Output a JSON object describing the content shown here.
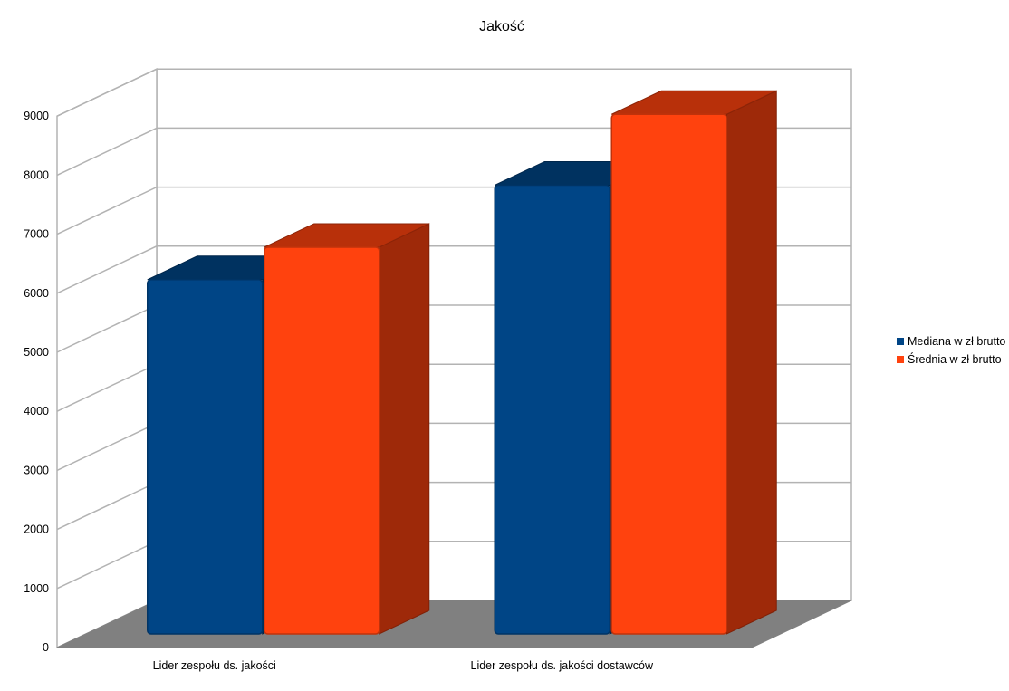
{
  "chart_data": {
    "type": "bar",
    "title": "Jakość",
    "categories": [
      "Lider zespołu ds. jakości",
      "Lider zespołu ds. jakości dostawców"
    ],
    "series": [
      {
        "name": "Mediana w zł brutto",
        "values": [
          6000,
          7600
        ],
        "color": "#004586"
      },
      {
        "name": "Średnia w zł brutto",
        "values": [
          6550,
          8800
        ],
        "color": "#ff420e"
      }
    ],
    "ylim": [
      0,
      9000
    ],
    "yticks": [
      0,
      1000,
      2000,
      3000,
      4000,
      5000,
      6000,
      7000,
      8000,
      9000
    ],
    "grid": true,
    "legend_position": "right",
    "three_d": true
  }
}
